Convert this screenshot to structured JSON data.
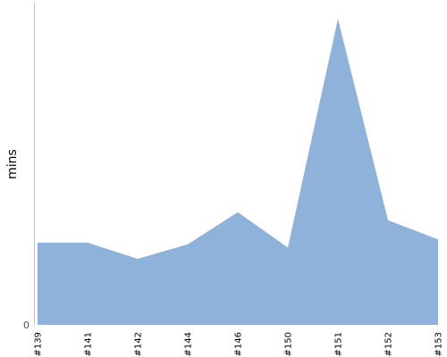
{
  "chart_data": {
    "type": "area",
    "categories": [
      "#139",
      "#141",
      "#142",
      "#144",
      "#146",
      "#150",
      "#151",
      "#152",
      "#153"
    ],
    "series": [
      {
        "values": [
          25.5,
          25.5,
          20.5,
          25,
          35,
          24,
          95,
          32.5,
          26.5
        ]
      }
    ],
    "ylabel": "mins",
    "ylim": [
      0,
      100
    ],
    "yticks": [
      0
    ],
    "ytick_labels": [
      "0"
    ],
    "grid": false,
    "legend": "none",
    "colors": {
      "area_fill": "#8fb2db",
      "axis": "#c0c0c0"
    }
  }
}
